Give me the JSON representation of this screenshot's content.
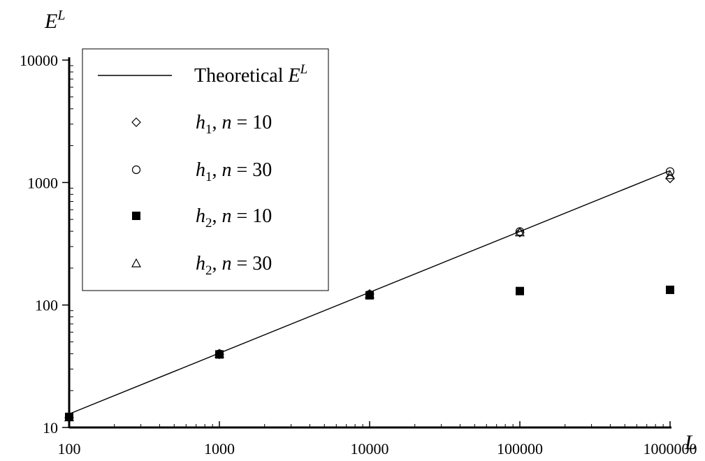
{
  "chart_data": {
    "type": "scatter",
    "x_scale": "log",
    "y_scale": "log",
    "xlim": [
      100,
      1000000
    ],
    "ylim": [
      10,
      10000
    ],
    "x_ticks": [
      "100",
      "1000",
      "10000",
      "100000",
      "1000000"
    ],
    "y_ticks": [
      "10",
      "100",
      "1000",
      "10000"
    ],
    "xlabel": "L",
    "ylabel": "E",
    "ylabel_sup": "L",
    "grid": false,
    "legend_position": "top-left",
    "series": [
      {
        "name": "Theoretical E^L",
        "kind": "line",
        "x": [
          100,
          1000000
        ],
        "y": [
          12.9,
          1250
        ]
      },
      {
        "name": "h1, n = 10",
        "kind": "marker",
        "marker": "diamond-open",
        "x": [
          100,
          1000,
          10000,
          100000,
          1000000
        ],
        "y": [
          12,
          39.5,
          123,
          390,
          1080
        ]
      },
      {
        "name": "h1, n = 30",
        "kind": "marker",
        "marker": "circle-open",
        "x": [
          100,
          1000,
          10000,
          100000,
          1000000
        ],
        "y": [
          12.2,
          40,
          122,
          398,
          1230
        ]
      },
      {
        "name": "h2, n = 10",
        "kind": "marker",
        "marker": "square-filled",
        "x": [
          100,
          1000,
          10000,
          100000,
          1000000
        ],
        "y": [
          12.2,
          39.5,
          120,
          130,
          133
        ]
      },
      {
        "name": "h2, n = 30",
        "kind": "marker",
        "marker": "triangle-open",
        "x": [
          100,
          1000,
          10000,
          100000,
          1000000
        ],
        "y": [
          12.1,
          40,
          122,
          392,
          1150
        ]
      }
    ]
  },
  "legend": {
    "line_label": "Theoretical ",
    "line_label_var": "E",
    "line_label_sup": "L",
    "entries": [
      {
        "h": "h",
        "sub": "1",
        "n": "n",
        "eq": " = 10"
      },
      {
        "h": "h",
        "sub": "1",
        "n": "n",
        "eq": " = 30"
      },
      {
        "h": "h",
        "sub": "2",
        "n": "n",
        "eq": " = 10"
      },
      {
        "h": "h",
        "sub": "2",
        "n": "n",
        "eq": " = 30"
      }
    ]
  }
}
